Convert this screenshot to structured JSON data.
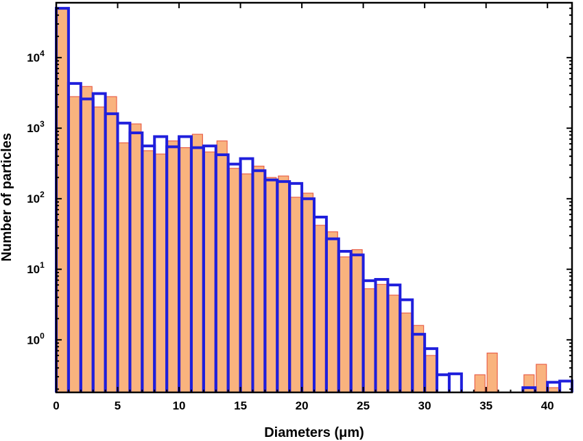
{
  "chart_data": {
    "type": "bar",
    "title": "",
    "xlabel": "Diameters (μm)",
    "ylabel": "Number of particles",
    "x_axis": {
      "min": 0,
      "max": 42,
      "ticks": [
        0,
        5,
        10,
        15,
        20,
        25,
        30,
        35,
        40
      ]
    },
    "y_axis": {
      "scale": "log",
      "min": 0.18,
      "max": 60000,
      "ticks": [
        {
          "value": 1,
          "base": "10",
          "exp": "0"
        },
        {
          "value": 10,
          "base": "10",
          "exp": "1"
        },
        {
          "value": 100,
          "base": "10",
          "exp": "2"
        },
        {
          "value": 1000,
          "base": "10",
          "exp": "3"
        },
        {
          "value": 10000,
          "base": "10",
          "exp": "4"
        }
      ]
    },
    "bin_width": 1,
    "series": [
      {
        "style": "filled",
        "color": "#f9b37e",
        "edge_color": "#e8604a",
        "bins": [
          {
            "x": 0.5,
            "y": 50000
          },
          {
            "x": 1.5,
            "y": 2800
          },
          {
            "x": 2.5,
            "y": 3900
          },
          {
            "x": 3.5,
            "y": 2000
          },
          {
            "x": 4.5,
            "y": 2800
          },
          {
            "x": 5.5,
            "y": 620
          },
          {
            "x": 6.5,
            "y": 1150
          },
          {
            "x": 7.5,
            "y": 480
          },
          {
            "x": 8.5,
            "y": 430
          },
          {
            "x": 9.5,
            "y": 660
          },
          {
            "x": 10.5,
            "y": 530
          },
          {
            "x": 11.5,
            "y": 820
          },
          {
            "x": 12.5,
            "y": 460
          },
          {
            "x": 13.5,
            "y": 660
          },
          {
            "x": 14.5,
            "y": 270
          },
          {
            "x": 15.5,
            "y": 225
          },
          {
            "x": 16.5,
            "y": 290
          },
          {
            "x": 17.5,
            "y": 200
          },
          {
            "x": 18.5,
            "y": 210
          },
          {
            "x": 19.5,
            "y": 105
          },
          {
            "x": 20.5,
            "y": 120
          },
          {
            "x": 21.5,
            "y": 42
          },
          {
            "x": 22.5,
            "y": 34
          },
          {
            "x": 23.5,
            "y": 15
          },
          {
            "x": 24.5,
            "y": 19
          },
          {
            "x": 25.5,
            "y": 5.3
          },
          {
            "x": 26.5,
            "y": 6.1
          },
          {
            "x": 27.5,
            "y": 4.3
          },
          {
            "x": 28.5,
            "y": 2.4
          },
          {
            "x": 29.5,
            "y": 1.6
          },
          {
            "x": 30.5,
            "y": 0.6
          },
          {
            "x": 34.5,
            "y": 0.32
          },
          {
            "x": 35.5,
            "y": 0.65
          },
          {
            "x": 38.5,
            "y": 0.32
          },
          {
            "x": 39.5,
            "y": 0.45
          },
          {
            "x": 40.5,
            "y": 0.21
          }
        ]
      },
      {
        "style": "outline",
        "color": "#1f1fdc",
        "bins": [
          {
            "x": 0.5,
            "y": 50000
          },
          {
            "x": 1.5,
            "y": 4300
          },
          {
            "x": 2.5,
            "y": 2600
          },
          {
            "x": 3.5,
            "y": 3100
          },
          {
            "x": 4.5,
            "y": 1600
          },
          {
            "x": 5.5,
            "y": 1180
          },
          {
            "x": 6.5,
            "y": 860
          },
          {
            "x": 7.5,
            "y": 560
          },
          {
            "x": 8.5,
            "y": 760
          },
          {
            "x": 9.5,
            "y": 545
          },
          {
            "x": 10.5,
            "y": 760
          },
          {
            "x": 11.5,
            "y": 530
          },
          {
            "x": 12.5,
            "y": 560
          },
          {
            "x": 13.5,
            "y": 420
          },
          {
            "x": 14.5,
            "y": 310
          },
          {
            "x": 15.5,
            "y": 370
          },
          {
            "x": 16.5,
            "y": 250
          },
          {
            "x": 17.5,
            "y": 185
          },
          {
            "x": 18.5,
            "y": 175
          },
          {
            "x": 19.5,
            "y": 165
          },
          {
            "x": 20.5,
            "y": 100
          },
          {
            "x": 21.5,
            "y": 55
          },
          {
            "x": 22.5,
            "y": 27
          },
          {
            "x": 23.5,
            "y": 18
          },
          {
            "x": 24.5,
            "y": 16
          },
          {
            "x": 25.5,
            "y": 6.9
          },
          {
            "x": 26.5,
            "y": 7.2
          },
          {
            "x": 27.5,
            "y": 6
          },
          {
            "x": 28.5,
            "y": 3.7
          },
          {
            "x": 29.5,
            "y": 1.2
          },
          {
            "x": 30.5,
            "y": 0.75
          },
          {
            "x": 31.5,
            "y": 0.32
          },
          {
            "x": 32.5,
            "y": 0.33
          },
          {
            "x": 38.5,
            "y": 0.21
          },
          {
            "x": 40.5,
            "y": 0.25
          },
          {
            "x": 41.5,
            "y": 0.26
          }
        ]
      }
    ]
  }
}
